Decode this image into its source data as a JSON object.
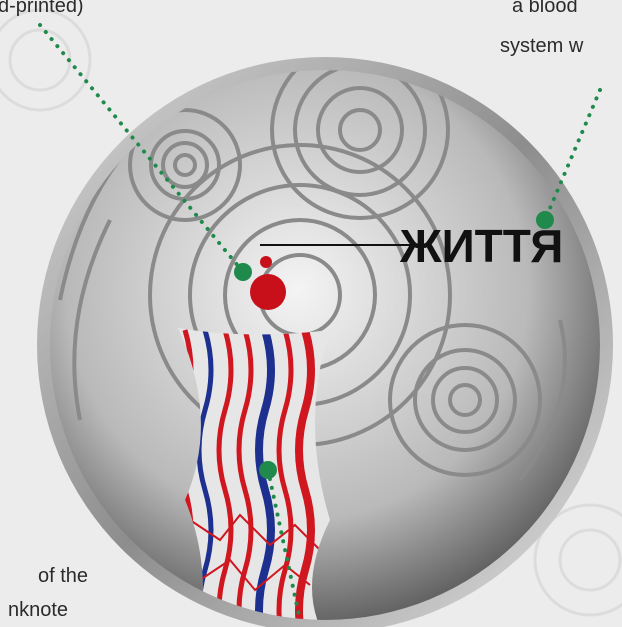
{
  "labels": {
    "top_left": "d-printed)",
    "top_right": [
      "a blood",
      "system w"
    ],
    "bottom_left": [
      "of the",
      "nknote"
    ]
  },
  "coin": {
    "inscription": "ЖИТТЯ"
  }
}
